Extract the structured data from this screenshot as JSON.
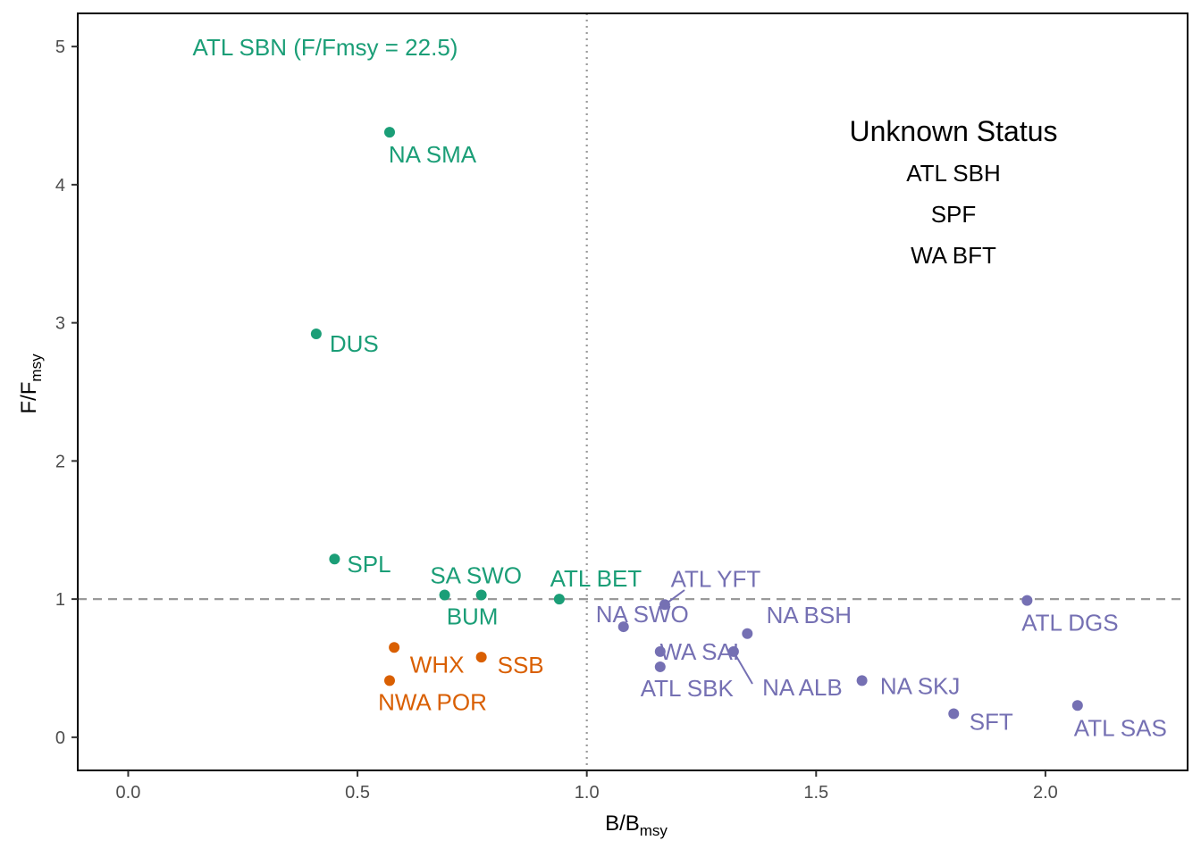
{
  "chart_data": {
    "type": "scatter",
    "title": "",
    "xlabel": "B/B",
    "xlabel_sub": "msy",
    "ylabel": "F/F",
    "ylabel_sub": "msy",
    "xlim": [
      -0.11,
      2.31
    ],
    "ylim": [
      -0.24,
      5.24
    ],
    "x_ticks": [
      0.0,
      0.5,
      1.0,
      1.5,
      2.0
    ],
    "x_tick_labels": [
      "0.0",
      "0.5",
      "1.0",
      "1.5",
      "2.0"
    ],
    "y_ticks": [
      0,
      1,
      2,
      3,
      4,
      5
    ],
    "y_tick_labels": [
      "0",
      "1",
      "2",
      "3",
      "4",
      "5"
    ],
    "grid": false,
    "reference_lines": [
      {
        "orientation": "vertical",
        "value": 1.0,
        "style": "dotted"
      },
      {
        "orientation": "horizontal",
        "value": 1.0,
        "style": "dashed"
      }
    ],
    "colors": {
      "green": "#1b9e77",
      "orange": "#d95f02",
      "purple": "#7570b3"
    },
    "points": [
      {
        "label": "NA SMA",
        "x": 0.57,
        "y": 4.38,
        "color": "green"
      },
      {
        "label": "DUS",
        "x": 0.41,
        "y": 2.92,
        "color": "green"
      },
      {
        "label": "SPL",
        "x": 0.45,
        "y": 1.29,
        "color": "green"
      },
      {
        "label": "SA SWO",
        "x": 0.77,
        "y": 1.03,
        "color": "green"
      },
      {
        "label": "BUM",
        "x": 0.69,
        "y": 1.03,
        "color": "green"
      },
      {
        "label": "ATL BET",
        "x": 0.94,
        "y": 1.0,
        "color": "green"
      },
      {
        "label": "WHX",
        "x": 0.58,
        "y": 0.65,
        "color": "orange"
      },
      {
        "label": "SSB",
        "x": 0.77,
        "y": 0.58,
        "color": "orange"
      },
      {
        "label": "NWA POR",
        "x": 0.57,
        "y": 0.41,
        "color": "orange"
      },
      {
        "label": "ATL YFT",
        "x": 1.17,
        "y": 0.96,
        "color": "purple"
      },
      {
        "label": "NA SWO",
        "x": 1.08,
        "y": 0.8,
        "color": "purple"
      },
      {
        "label": "NA BSH",
        "x": 1.35,
        "y": 0.75,
        "color": "purple"
      },
      {
        "label": "WA SAI",
        "x": 1.16,
        "y": 0.62,
        "color": "purple"
      },
      {
        "label": "ATL SBK",
        "x": 1.16,
        "y": 0.51,
        "color": "purple"
      },
      {
        "label": "NA ALB",
        "x": 1.32,
        "y": 0.62,
        "color": "purple"
      },
      {
        "label": "NA SKJ",
        "x": 1.6,
        "y": 0.41,
        "color": "purple"
      },
      {
        "label": "SFT",
        "x": 1.8,
        "y": 0.17,
        "color": "purple"
      },
      {
        "label": "ATL DGS",
        "x": 1.96,
        "y": 0.99,
        "color": "purple"
      },
      {
        "label": "ATL SAS",
        "x": 2.07,
        "y": 0.23,
        "color": "purple"
      }
    ],
    "annotations": {
      "offscale": {
        "text": "ATL SBN (F/Fmsy = 22.5)",
        "color": "green"
      },
      "unknown_title": "Unknown Status",
      "unknown_items": [
        "ATL SBH",
        "SPF",
        "WA BFT"
      ]
    }
  }
}
